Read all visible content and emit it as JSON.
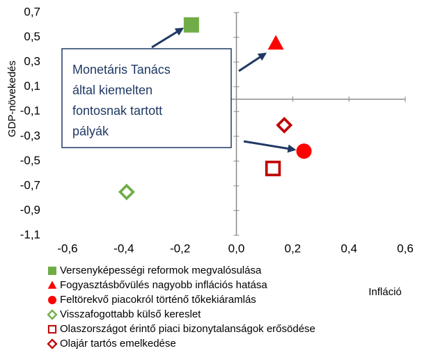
{
  "chart_data": {
    "type": "scatter",
    "xlabel": "Infláció",
    "ylabel": "GDP-növekedés",
    "xlim": [
      -0.6,
      0.6
    ],
    "xticks": [
      {
        "value": -0.6,
        "label": "-0,6"
      },
      {
        "value": -0.4,
        "label": "-0,4"
      },
      {
        "value": -0.2,
        "label": "-0,2"
      },
      {
        "value": 0,
        "label": "0,0"
      },
      {
        "value": 0.2,
        "label": "0,2"
      },
      {
        "value": 0.4,
        "label": "0,4"
      },
      {
        "value": 0.6,
        "label": "0,6"
      }
    ],
    "ylim": [
      -1.1,
      0.7
    ],
    "yticks": [
      {
        "value": -1.1,
        "label": "-1,1"
      },
      {
        "value": -0.9,
        "label": "-0,9"
      },
      {
        "value": -0.7,
        "label": "-0,7"
      },
      {
        "value": -0.5,
        "label": "-0,5"
      },
      {
        "value": -0.3,
        "label": "-0,3"
      },
      {
        "value": -0.1,
        "label": "-0,1"
      },
      {
        "value": 0.1,
        "label": "0,1"
      },
      {
        "value": 0.3,
        "label": "0,3"
      },
      {
        "value": 0.5,
        "label": "0,5"
      },
      {
        "value": 0.7,
        "label": "0,7"
      }
    ],
    "grid": false,
    "annotation": [
      "Monetáris Tanács",
      "által kiemelten",
      "fontosnak tartott",
      "pályák"
    ],
    "series": [
      {
        "name": "Versenyképességi reformok megvalósulása",
        "color": "#70ad47",
        "marker": "square",
        "filled": true,
        "x": [
          -0.16
        ],
        "values": [
          0.6
        ]
      },
      {
        "name": "Fogyasztásbővülés nagyobb inflációs hatása",
        "color": "#ff0000",
        "marker": "triangle",
        "filled": true,
        "x": [
          0.14
        ],
        "values": [
          0.45
        ]
      },
      {
        "name": "Feltörekvő piacokról történő tőkekiáramlás",
        "color": "#ff0000",
        "marker": "circle",
        "filled": true,
        "x": [
          0.24
        ],
        "values": [
          -0.42
        ]
      },
      {
        "name": "Visszafogottabb külső kereslet",
        "color": "#70ad47",
        "marker": "diamond",
        "filled": false,
        "x": [
          -0.39
        ],
        "values": [
          -0.75
        ]
      },
      {
        "name": "Olaszországot érintő piaci bizonytalanságok erősödése",
        "color": "#c00000",
        "marker": "square",
        "filled": false,
        "x": [
          0.13
        ],
        "values": [
          -0.56
        ]
      },
      {
        "name": "Olajár tartós emelkedése",
        "color": "#c00000",
        "marker": "diamond",
        "filled": false,
        "x": [
          0.17
        ],
        "values": [
          -0.21
        ]
      }
    ]
  }
}
